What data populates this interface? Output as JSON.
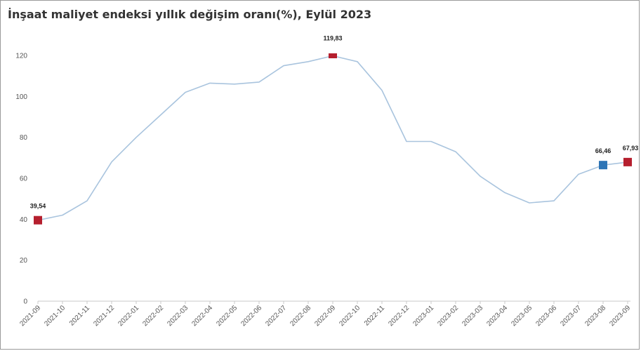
{
  "chart_data": {
    "type": "line",
    "title": "İnşaat maliyet endeksi yıllık değişim oranı(%), Eylül 2023",
    "xlabel": "",
    "ylabel": "",
    "ylim": [
      0,
      120
    ],
    "yticks": [
      0,
      20,
      40,
      60,
      80,
      100,
      120
    ],
    "grid": false,
    "categories": [
      "2021-09",
      "2021-10",
      "2021-11",
      "2021-12",
      "2022-01",
      "2022-02",
      "2022-03",
      "2022-04",
      "2022-05",
      "2022-06",
      "2022-07",
      "2022-08",
      "2022-09",
      "2022-10",
      "2022-11",
      "2022-12",
      "2023-01",
      "2023-02",
      "2023-03",
      "2023-04",
      "2023-05",
      "2023-06",
      "2023-07",
      "2023-08",
      "2023-09"
    ],
    "series": [
      {
        "values": [
          39.54,
          42,
          49,
          68,
          80,
          91,
          102,
          106.5,
          106,
          107,
          115,
          117,
          119.83,
          117,
          103,
          78,
          78,
          73,
          61,
          53,
          48,
          49,
          62,
          66.46,
          67.93
        ],
        "color": "#a9c4de"
      }
    ],
    "highlighted_points": [
      {
        "category": "2021-09",
        "value": 39.54,
        "label": "39,54",
        "color": "#b51f2e"
      },
      {
        "category": "2022-09",
        "value": 119.83,
        "label": "119,83",
        "color": "#b51f2e"
      },
      {
        "category": "2023-08",
        "value": 66.46,
        "label": "66,46",
        "color": "#2e75b6"
      },
      {
        "category": "2023-09",
        "value": 67.93,
        "label": "67,93",
        "color": "#b51f2e"
      }
    ]
  }
}
